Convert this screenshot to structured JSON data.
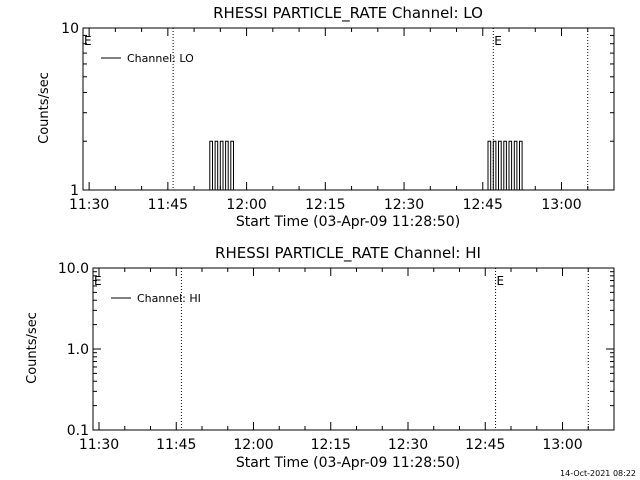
{
  "footer": {
    "timestamp": "14-Oct-2021 08:22"
  },
  "colors": {
    "background": "#ffffff",
    "foreground": "#000000"
  },
  "chart_data": [
    {
      "type": "line",
      "title": "RHESSI PARTICLE_RATE Channel: LO",
      "xlabel": "Start Time (03-Apr-09 11:28:50)",
      "ylabel": "Counts/sec",
      "y_scale": "log",
      "ylim": [
        1,
        10
      ],
      "xlim": [
        "11:28:50",
        "13:10:00"
      ],
      "x_ticks": [
        "11:30",
        "11:45",
        "12:00",
        "12:15",
        "12:30",
        "12:45",
        "13:00"
      ],
      "y_ticks": [
        "1",
        "10"
      ],
      "legend": {
        "position": "top-left",
        "entries": [
          "Channel: LO"
        ]
      },
      "markers": [
        {
          "time": "11:46:00",
          "label": ""
        },
        {
          "time": "12:47:00",
          "label": "E"
        },
        {
          "time": "13:05:00",
          "label": ""
        }
      ],
      "edge_labels": [
        "E"
      ],
      "series": [
        {
          "name": "Channel: LO",
          "points": [
            [
              "11:53:00",
              1
            ],
            [
              "11:53:00",
              2
            ],
            [
              "11:53:30",
              2
            ],
            [
              "11:53:30",
              1
            ],
            [
              "11:54:00",
              1
            ],
            [
              "11:54:00",
              2
            ],
            [
              "11:54:30",
              2
            ],
            [
              "11:54:30",
              1
            ],
            [
              "11:55:00",
              1
            ],
            [
              "11:55:00",
              2
            ],
            [
              "11:55:30",
              2
            ],
            [
              "11:55:30",
              1
            ],
            [
              "11:56:00",
              1
            ],
            [
              "11:56:00",
              2
            ],
            [
              "11:56:30",
              2
            ],
            [
              "11:56:30",
              1
            ],
            [
              "11:57:00",
              1
            ],
            [
              "11:57:00",
              2
            ],
            [
              "11:57:30",
              2
            ],
            [
              "11:57:30",
              1
            ],
            [
              "12:46:00",
              1
            ],
            [
              "12:46:00",
              2
            ],
            [
              "12:46:30",
              2
            ],
            [
              "12:46:30",
              1
            ],
            [
              "12:47:00",
              1
            ],
            [
              "12:47:00",
              2
            ],
            [
              "12:47:30",
              2
            ],
            [
              "12:47:30",
              1
            ],
            [
              "12:48:00",
              1
            ],
            [
              "12:48:00",
              2
            ],
            [
              "12:48:30",
              2
            ],
            [
              "12:48:30",
              1
            ],
            [
              "12:49:00",
              1
            ],
            [
              "12:49:00",
              2
            ],
            [
              "12:49:30",
              2
            ],
            [
              "12:49:30",
              1
            ],
            [
              "12:50:00",
              1
            ],
            [
              "12:50:00",
              2
            ],
            [
              "12:50:30",
              2
            ],
            [
              "12:50:30",
              1
            ],
            [
              "12:51:00",
              1
            ],
            [
              "12:51:00",
              2
            ],
            [
              "12:51:30",
              2
            ],
            [
              "12:51:30",
              1
            ],
            [
              "12:52:00",
              1
            ],
            [
              "12:52:00",
              2
            ],
            [
              "12:52:30",
              2
            ],
            [
              "12:52:30",
              1
            ]
          ]
        }
      ]
    },
    {
      "type": "line",
      "title": "RHESSI PARTICLE_RATE Channel: HI",
      "xlabel": "Start Time (03-Apr-09 11:28:50)",
      "ylabel": "Counts/sec",
      "y_scale": "log",
      "ylim": [
        0.1,
        10
      ],
      "xlim": [
        "11:28:50",
        "13:10:00"
      ],
      "x_ticks": [
        "11:30",
        "11:45",
        "12:00",
        "12:15",
        "12:30",
        "12:45",
        "13:00"
      ],
      "y_ticks": [
        "0.1",
        "1.0",
        "10.0"
      ],
      "legend": {
        "position": "top-left",
        "entries": [
          "Channel: HI"
        ]
      },
      "markers": [
        {
          "time": "11:46:00",
          "label": ""
        },
        {
          "time": "12:47:00",
          "label": "E"
        },
        {
          "time": "13:05:00",
          "label": ""
        }
      ],
      "edge_labels": [
        "E"
      ],
      "series": [
        {
          "name": "Channel: HI",
          "points": []
        }
      ]
    }
  ]
}
